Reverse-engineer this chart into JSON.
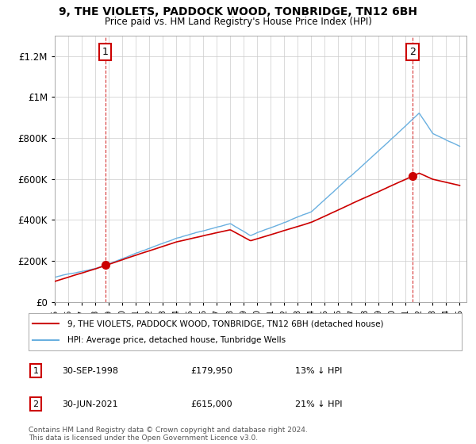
{
  "title": "9, THE VIOLETS, PADDOCK WOOD, TONBRIDGE, TN12 6BH",
  "subtitle": "Price paid vs. HM Land Registry's House Price Index (HPI)",
  "ytick_vals": [
    0,
    200000,
    400000,
    600000,
    800000,
    1000000,
    1200000
  ],
  "ylim": [
    0,
    1300000
  ],
  "xlim_start": 1995.0,
  "xlim_end": 2025.5,
  "hpi_color": "#6ab0e0",
  "price_color": "#cc0000",
  "point1_x": 1998.75,
  "point1_y": 179950,
  "point2_x": 2021.5,
  "point2_y": 615000,
  "legend_label1": "9, THE VIOLETS, PADDOCK WOOD, TONBRIDGE, TN12 6BH (detached house)",
  "legend_label2": "HPI: Average price, detached house, Tunbridge Wells",
  "note1_num": "1",
  "note1_date": "30-SEP-1998",
  "note1_price": "£179,950",
  "note1_change": "13% ↓ HPI",
  "note2_num": "2",
  "note2_date": "30-JUN-2021",
  "note2_price": "£615,000",
  "note2_change": "21% ↓ HPI",
  "footer": "Contains HM Land Registry data © Crown copyright and database right 2024.\nThis data is licensed under the Open Government Licence v3.0.",
  "bg_color": "#ffffff",
  "grid_color": "#cccccc",
  "vline_color": "#cc0000"
}
